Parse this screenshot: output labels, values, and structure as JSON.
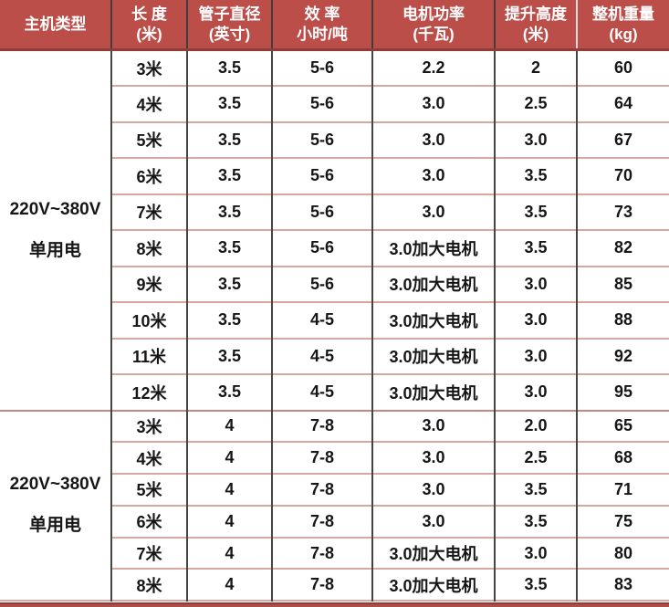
{
  "chart_data": {
    "type": "table",
    "header": [
      {
        "line1": "主机类型",
        "line2": ""
      },
      {
        "line1": "长 度",
        "line2": "(米)"
      },
      {
        "line1": "管子直径",
        "line2": "(英寸)"
      },
      {
        "line1": "效 率",
        "line2": "小时/吨"
      },
      {
        "line1": "电机功率",
        "line2": "(千瓦)"
      },
      {
        "line1": "提升高度",
        "line2": "(米)"
      },
      {
        "line1": "整机重量",
        "line2": "(kg)"
      }
    ],
    "groups": [
      {
        "machine_type": [
          "220V~380V",
          "单用电"
        ],
        "rows": [
          [
            "3米",
            "3.5",
            "5-6",
            "2.2",
            "2",
            "60"
          ],
          [
            "4米",
            "3.5",
            "5-6",
            "3.0",
            "2.5",
            "64"
          ],
          [
            "5米",
            "3.5",
            "5-6",
            "3.0",
            "3.0",
            "67"
          ],
          [
            "6米",
            "3.5",
            "5-6",
            "3.0",
            "3.5",
            "70"
          ],
          [
            "7米",
            "3.5",
            "5-6",
            "3.0",
            "3.5",
            "73"
          ],
          [
            "8米",
            "3.5",
            "5-6",
            "3.0加大电机",
            "3.5",
            "82"
          ],
          [
            "9米",
            "3.5",
            "5-6",
            "3.0加大电机",
            "3.0",
            "85"
          ],
          [
            "10米",
            "3.5",
            "4-5",
            "3.0加大电机",
            "3.0",
            "88"
          ],
          [
            "11米",
            "3.5",
            "4-5",
            "3.0加大电机",
            "3.0",
            "92"
          ],
          [
            "12米",
            "3.5",
            "4-5",
            "3.0加大电机",
            "3.0",
            "95"
          ]
        ]
      },
      {
        "machine_type": [
          "220V~380V",
          "单用电"
        ],
        "rows": [
          [
            "3米",
            "4",
            "7-8",
            "3.0",
            "2.0",
            "65"
          ],
          [
            "4米",
            "4",
            "7-8",
            "3.0",
            "2.5",
            "68"
          ],
          [
            "5米",
            "4",
            "7-8",
            "3.0",
            "3.5",
            "71"
          ],
          [
            "6米",
            "4",
            "7-8",
            "3.0",
            "3.5",
            "75"
          ],
          [
            "7米",
            "4",
            "7-8",
            "3.0加大电机",
            "3.0",
            "80"
          ],
          [
            "8米",
            "4",
            "7-8",
            "3.0加大电机",
            "3.5",
            "83"
          ]
        ]
      }
    ]
  },
  "colors": {
    "header_bg": "#bb4e49",
    "header_text": "#ffffff",
    "header_underline": "#8f3d38",
    "grid_vertical": "#454545",
    "grid_horizontal": "#d7a8a2",
    "group_separator": "#c48880",
    "body_text": "#161616",
    "bottom_band": "#ad4f48"
  }
}
